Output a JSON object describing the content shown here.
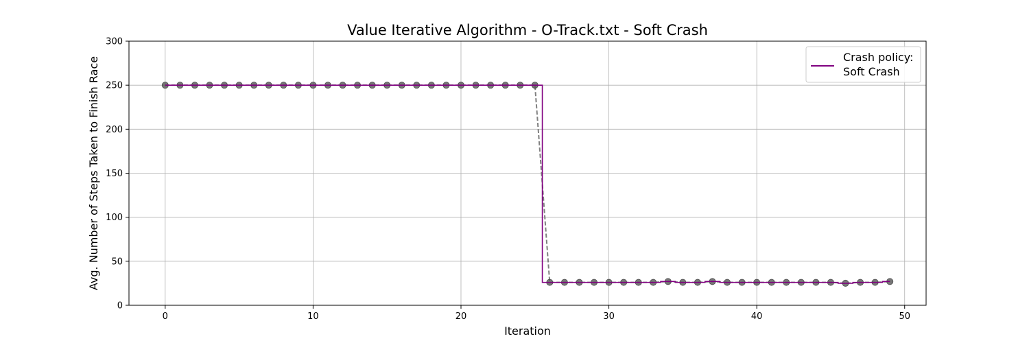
{
  "chart_data": {
    "type": "line",
    "title": "Value Iterative Algorithm - O-Track.txt - Soft Crash",
    "xlabel": "Iteration",
    "ylabel": "Avg. Number of Steps Taken to Finish Race",
    "xlim": [
      -2.45,
      51.45
    ],
    "ylim": [
      0,
      300
    ],
    "xticks": [
      0,
      10,
      20,
      30,
      40,
      50
    ],
    "yticks": [
      0,
      50,
      100,
      150,
      200,
      250,
      300
    ],
    "grid": true,
    "legend": {
      "title": "Crash policy:",
      "position": "top-right",
      "entries": [
        "Soft Crash"
      ]
    },
    "series": [
      {
        "name": "Soft Crash",
        "style": "step-mid",
        "color": "#800080",
        "x": [
          0,
          1,
          2,
          3,
          4,
          5,
          6,
          7,
          8,
          9,
          10,
          11,
          12,
          13,
          14,
          15,
          16,
          17,
          18,
          19,
          20,
          21,
          22,
          23,
          24,
          25,
          26,
          27,
          28,
          29,
          30,
          31,
          32,
          33,
          34,
          35,
          36,
          37,
          38,
          39,
          40,
          41,
          42,
          43,
          44,
          45,
          46,
          47,
          48,
          49
        ],
        "y": [
          250,
          250,
          250,
          250,
          250,
          250,
          250,
          250,
          250,
          250,
          250,
          250,
          250,
          250,
          250,
          250,
          250,
          250,
          250,
          250,
          250,
          250,
          250,
          250,
          250,
          250,
          26,
          26,
          26,
          26,
          26,
          26,
          26,
          26,
          27,
          26,
          26,
          27,
          26,
          26,
          26,
          26,
          26,
          26,
          26,
          26,
          25,
          26,
          26,
          27
        ]
      },
      {
        "style": "dashed-markers",
        "color": "#808080",
        "marker_color": "#555555",
        "x": [
          0,
          1,
          2,
          3,
          4,
          5,
          6,
          7,
          8,
          9,
          10,
          11,
          12,
          13,
          14,
          15,
          16,
          17,
          18,
          19,
          20,
          21,
          22,
          23,
          24,
          25,
          26,
          27,
          28,
          29,
          30,
          31,
          32,
          33,
          34,
          35,
          36,
          37,
          38,
          39,
          40,
          41,
          42,
          43,
          44,
          45,
          46,
          47,
          48,
          49
        ],
        "y": [
          250,
          250,
          250,
          250,
          250,
          250,
          250,
          250,
          250,
          250,
          250,
          250,
          250,
          250,
          250,
          250,
          250,
          250,
          250,
          250,
          250,
          250,
          250,
          250,
          250,
          250,
          26,
          26,
          26,
          26,
          26,
          26,
          26,
          26,
          27,
          26,
          26,
          27,
          26,
          26,
          26,
          26,
          26,
          26,
          26,
          26,
          25,
          26,
          26,
          27
        ]
      }
    ]
  }
}
